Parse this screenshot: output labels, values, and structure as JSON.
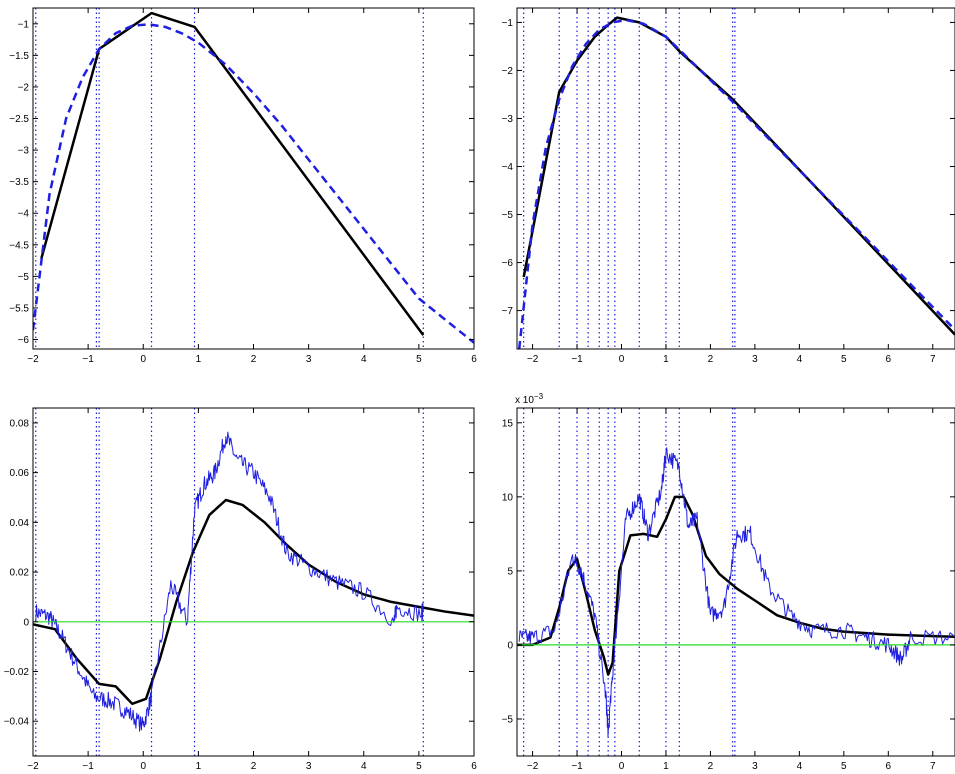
{
  "chart_data": [
    {
      "type": "line",
      "panel": "top-left",
      "xlim": [
        -2,
        6
      ],
      "ylim": [
        -6.15,
        -0.75
      ],
      "xticks": [
        -2,
        -1,
        0,
        1,
        2,
        3,
        4,
        5,
        6
      ],
      "yticks": [
        -6,
        -5.5,
        -5,
        -4.5,
        -4,
        -3.5,
        -3,
        -2.5,
        -2,
        -1.5,
        -1
      ],
      "grid": false,
      "series": [
        {
          "style": "solid",
          "color": "#000000",
          "x": [
            -1.85,
            -0.8,
            0.15,
            0.93,
            5.08
          ],
          "y": [
            -4.72,
            -1.4,
            -0.83,
            -1.05,
            -5.93
          ]
        },
        {
          "style": "dashed",
          "color": "#1f1fe0",
          "x": [
            -2.0,
            -1.7,
            -1.4,
            -1.1,
            -0.8,
            -0.5,
            -0.2,
            0.1,
            0.4,
            0.7,
            1.0,
            1.5,
            2.0,
            2.5,
            3.0,
            3.5,
            4.0,
            4.5,
            5.0,
            5.5,
            6.0
          ],
          "y": [
            -5.85,
            -3.7,
            -2.5,
            -1.85,
            -1.4,
            -1.15,
            -1.03,
            -1.01,
            -1.05,
            -1.15,
            -1.3,
            -1.65,
            -2.1,
            -2.6,
            -3.15,
            -3.7,
            -4.25,
            -4.8,
            -5.35,
            -5.7,
            -6.05
          ]
        }
      ],
      "vlines": [
        -1.95,
        -0.85,
        -0.8,
        0.15,
        0.93,
        5.08
      ]
    },
    {
      "type": "line",
      "panel": "top-right",
      "xlim": [
        -2.35,
        7.5
      ],
      "ylim": [
        -7.8,
        -0.7
      ],
      "xticks": [
        -2,
        -1,
        0,
        1,
        2,
        3,
        4,
        5,
        6,
        7
      ],
      "yticks": [
        -7,
        -6,
        -5,
        -4,
        -3,
        -2,
        -1
      ],
      "grid": false,
      "series": [
        {
          "style": "solid",
          "color": "#000000",
          "x": [
            -2.2,
            -1.4,
            -1.0,
            -0.6,
            -0.3,
            -0.1,
            0.4,
            1.0,
            1.3,
            2.5,
            7.5
          ],
          "y": [
            -6.3,
            -2.45,
            -1.8,
            -1.3,
            -1.05,
            -0.9,
            -1.0,
            -1.3,
            -1.6,
            -2.6,
            -7.5
          ]
        },
        {
          "style": "dashed",
          "color": "#1f1fe0",
          "x": [
            -2.3,
            -2.0,
            -1.7,
            -1.4,
            -1.1,
            -0.8,
            -0.5,
            -0.2,
            0.1,
            0.5,
            1.0,
            1.5,
            2.0,
            2.5,
            3.5,
            4.5,
            5.5,
            6.5,
            7.5
          ],
          "y": [
            -7.8,
            -5.2,
            -3.6,
            -2.6,
            -1.9,
            -1.45,
            -1.15,
            -1.0,
            -0.95,
            -1.03,
            -1.3,
            -1.75,
            -2.2,
            -2.65,
            -3.6,
            -4.55,
            -5.5,
            -6.45,
            -7.4
          ]
        }
      ],
      "vlines": [
        -2.2,
        -1.4,
        -1.0,
        -0.75,
        -0.5,
        -0.3,
        -0.15,
        0.4,
        1.0,
        1.3,
        2.5,
        2.55
      ]
    },
    {
      "type": "line",
      "panel": "bottom-left",
      "xlim": [
        -2,
        6
      ],
      "ylim": [
        -0.054,
        0.086
      ],
      "xticks": [
        -2,
        -1,
        0,
        1,
        2,
        3,
        4,
        5,
        6
      ],
      "yticks": [
        -0.04,
        -0.02,
        0,
        0.02,
        0.04,
        0.06,
        0.08
      ],
      "grid": false,
      "series": [
        {
          "style": "solid",
          "color": "#000000",
          "x": [
            -2.0,
            -1.6,
            -1.2,
            -0.8,
            -0.5,
            -0.2,
            0.05,
            0.3,
            0.6,
            0.9,
            1.2,
            1.5,
            1.8,
            2.2,
            2.6,
            3.0,
            3.5,
            4.0,
            4.5,
            5.0,
            5.5,
            6.0
          ],
          "y": [
            -0.001,
            -0.003,
            -0.015,
            -0.025,
            -0.026,
            -0.033,
            -0.031,
            -0.015,
            0.008,
            0.028,
            0.043,
            0.049,
            0.047,
            0.04,
            0.031,
            0.023,
            0.016,
            0.011,
            0.008,
            0.006,
            0.004,
            0.0025
          ]
        },
        {
          "style": "noisy",
          "color": "#1f1fe0",
          "x": [
            -1.95,
            -1.7,
            -1.5,
            -1.2,
            -0.9,
            -0.6,
            -0.3,
            0.0,
            0.15,
            0.5,
            0.8,
            0.93,
            1.1,
            1.3,
            1.5,
            1.7,
            2.0,
            2.3,
            2.6,
            3.0,
            3.5,
            4.0,
            4.55,
            4.6,
            5.05,
            5.08
          ],
          "y": [
            0.004,
            0.002,
            -0.005,
            -0.018,
            -0.03,
            -0.032,
            -0.036,
            -0.042,
            -0.03,
            0.015,
            0.0,
            0.045,
            0.055,
            0.06,
            0.075,
            0.065,
            0.06,
            0.05,
            0.028,
            0.022,
            0.016,
            0.012,
            0.0,
            0.006,
            0.003,
            0.006
          ]
        },
        {
          "style": "solid",
          "color": "#22dd22",
          "x": [
            -2,
            6
          ],
          "y": [
            0,
            0
          ]
        }
      ],
      "vlines": [
        -1.95,
        -0.85,
        -0.8,
        0.15,
        0.93,
        5.08
      ]
    },
    {
      "type": "line",
      "panel": "bottom-right",
      "exponent_label": "x 10",
      "exponent": "-3",
      "xlim": [
        -2.35,
        7.5
      ],
      "ylim": [
        -7.5,
        16
      ],
      "xticks": [
        -2,
        -1,
        0,
        1,
        2,
        3,
        4,
        5,
        6,
        7
      ],
      "yticks": [
        -5,
        0,
        5,
        10,
        15
      ],
      "grid": false,
      "series": [
        {
          "style": "solid",
          "color": "#000000",
          "x": [
            -2.35,
            -2.0,
            -1.6,
            -1.4,
            -1.2,
            -1.0,
            -0.8,
            -0.6,
            -0.4,
            -0.3,
            -0.2,
            -0.05,
            0.2,
            0.5,
            0.8,
            1.0,
            1.2,
            1.4,
            1.6,
            1.9,
            2.2,
            2.6,
            3.0,
            3.5,
            4.0,
            4.5,
            5.0,
            5.5,
            6.0,
            7.0,
            7.5
          ],
          "y": [
            0.0,
            0.0,
            0.5,
            2.5,
            5.0,
            5.8,
            3.5,
            1.0,
            -0.8,
            -2.0,
            -1.2,
            5.0,
            7.4,
            7.5,
            7.3,
            8.5,
            10.0,
            10.0,
            8.8,
            6.0,
            4.8,
            3.8,
            3.0,
            2.0,
            1.5,
            1.1,
            0.9,
            0.8,
            0.7,
            0.6,
            0.55
          ]
        },
        {
          "style": "noisy",
          "color": "#1f1fe0",
          "x": [
            -2.3,
            -2.0,
            -1.5,
            -1.1,
            -0.9,
            -0.6,
            -0.35,
            -0.3,
            -0.15,
            0.1,
            0.4,
            0.6,
            0.9,
            1.0,
            1.3,
            1.5,
            1.7,
            2.0,
            2.3,
            2.6,
            2.9,
            3.3,
            3.8,
            4.3,
            5.0,
            5.5,
            6.0,
            6.3,
            6.5,
            7.5
          ],
          "y": [
            0.5,
            0.5,
            1.0,
            6.0,
            5.0,
            2.0,
            -3.5,
            -6.0,
            0.0,
            8.5,
            10.0,
            7.5,
            10.5,
            13.0,
            12.0,
            8.0,
            8.5,
            2.0,
            2.5,
            7.5,
            7.5,
            4.0,
            2.0,
            1.0,
            1.0,
            0.5,
            0.0,
            -1.0,
            0.5,
            0.5
          ]
        },
        {
          "style": "solid",
          "color": "#22dd22",
          "x": [
            -2.35,
            7.5
          ],
          "y": [
            0,
            0
          ]
        }
      ],
      "vlines": [
        -2.2,
        -1.4,
        -1.0,
        -0.75,
        -0.5,
        -0.3,
        -0.15,
        0.4,
        1.0,
        1.3,
        2.5,
        2.55
      ]
    }
  ]
}
